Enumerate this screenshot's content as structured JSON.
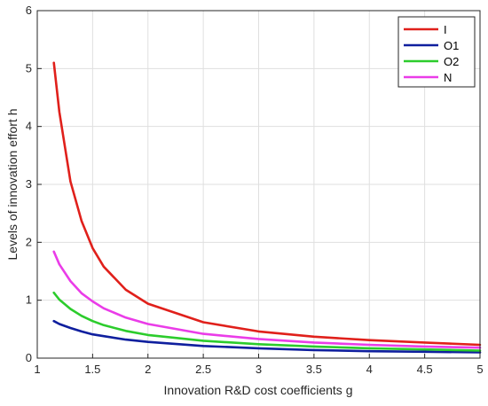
{
  "chart_data": {
    "type": "line",
    "title": "",
    "xlabel": "Innovation R&D cost coefficients g",
    "ylabel": "Levels of innovation effort h",
    "xlim": [
      1,
      5
    ],
    "ylim": [
      0,
      6
    ],
    "xticks": [
      1,
      1.5,
      2,
      2.5,
      3,
      3.5,
      4,
      4.5,
      5
    ],
    "yticks": [
      0,
      1,
      2,
      3,
      4,
      5,
      6
    ],
    "xtick_labels": [
      "1",
      "1.5",
      "2",
      "2.5",
      "3",
      "3.5",
      "4",
      "4.5",
      "5"
    ],
    "ytick_labels": [
      "0",
      "1",
      "2",
      "3",
      "4",
      "5",
      "6"
    ],
    "grid": true,
    "legend_position": "top-right",
    "series": [
      {
        "name": "I",
        "color": "#e0201b",
        "x": [
          1.15,
          1.2,
          1.3,
          1.4,
          1.5,
          1.6,
          1.8,
          2.0,
          2.5,
          3.0,
          3.5,
          4.0,
          4.5,
          5.0
        ],
        "y": [
          5.1,
          4.25,
          3.05,
          2.37,
          1.9,
          1.58,
          1.18,
          0.94,
          0.62,
          0.46,
          0.37,
          0.31,
          0.27,
          0.23
        ]
      },
      {
        "name": "O1",
        "color": "#0f1f9e",
        "x": [
          1.15,
          1.2,
          1.3,
          1.4,
          1.5,
          1.6,
          1.8,
          2.0,
          2.5,
          3.0,
          3.5,
          4.0,
          4.5,
          5.0
        ],
        "y": [
          0.64,
          0.59,
          0.52,
          0.46,
          0.41,
          0.38,
          0.32,
          0.28,
          0.21,
          0.17,
          0.14,
          0.12,
          0.11,
          0.1
        ]
      },
      {
        "name": "O2",
        "color": "#2ccc2c",
        "x": [
          1.15,
          1.2,
          1.3,
          1.4,
          1.5,
          1.6,
          1.8,
          2.0,
          2.5,
          3.0,
          3.5,
          4.0,
          4.5,
          5.0
        ],
        "y": [
          1.13,
          1.01,
          0.85,
          0.73,
          0.64,
          0.57,
          0.47,
          0.4,
          0.3,
          0.24,
          0.2,
          0.17,
          0.15,
          0.13
        ]
      },
      {
        "name": "N",
        "color": "#ea3ce8",
        "x": [
          1.15,
          1.2,
          1.3,
          1.4,
          1.5,
          1.6,
          1.8,
          2.0,
          2.5,
          3.0,
          3.5,
          4.0,
          4.5,
          5.0
        ],
        "y": [
          1.84,
          1.62,
          1.33,
          1.12,
          0.98,
          0.86,
          0.7,
          0.59,
          0.42,
          0.33,
          0.27,
          0.23,
          0.2,
          0.18
        ]
      }
    ]
  }
}
